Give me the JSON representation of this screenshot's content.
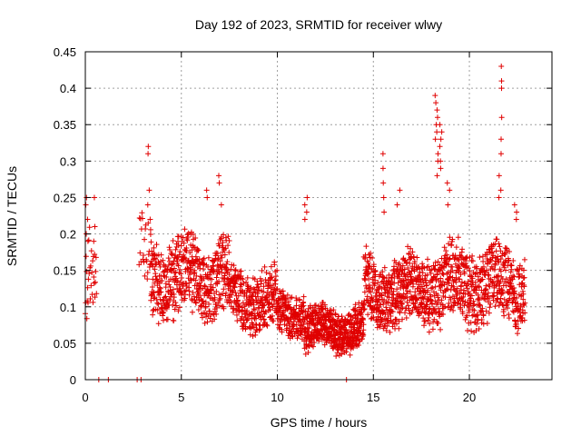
{
  "chart_data": {
    "type": "scatter",
    "title": "Day 192 of 2023, SRMTID for receiver wlwy",
    "xlabel": "GPS time / hours",
    "ylabel": "SRMTID / TECUs",
    "xlim": [
      0,
      24.3
    ],
    "ylim": [
      0,
      0.45
    ],
    "xticks": [
      0,
      5,
      10,
      15,
      20
    ],
    "xtick_labels": [
      "0",
      "5",
      "10",
      "15",
      "20"
    ],
    "yticks": [
      0,
      0.05,
      0.1,
      0.15,
      0.2,
      0.25,
      0.3,
      0.35,
      0.4,
      0.45
    ],
    "ytick_labels": [
      "0",
      "0.05",
      "0.1",
      "0.15",
      "0.2",
      "0.25",
      "0.3",
      "0.35",
      "0.4",
      "0.45"
    ],
    "grid": true,
    "marker": "+",
    "marker_color": "#e00000",
    "series": [
      {
        "name": "SRMTID",
        "segments": [
          {
            "x": [
              0.0,
              0.6
            ],
            "level": 0.14,
            "spread": 0.05,
            "step": 0.02
          },
          {
            "x": [
              2.8,
              3.4
            ],
            "level": 0.17,
            "spread": 0.04,
            "step": 0.025
          },
          {
            "x": [
              3.4,
              7.5
            ],
            "level": 0.14,
            "spread": 0.045,
            "step": 0.008
          },
          {
            "x": [
              7.5,
              10.0
            ],
            "level": 0.11,
            "spread": 0.035,
            "step": 0.008
          },
          {
            "x": [
              10.0,
              11.4
            ],
            "level": 0.09,
            "spread": 0.025,
            "step": 0.008
          },
          {
            "x": [
              11.4,
              14.5
            ],
            "level": 0.07,
            "spread": 0.025,
            "step": 0.006
          },
          {
            "x": [
              14.5,
              17.8
            ],
            "level": 0.12,
            "spread": 0.04,
            "step": 0.007
          },
          {
            "x": [
              17.8,
              22.9
            ],
            "level": 0.13,
            "spread": 0.045,
            "step": 0.008
          }
        ],
        "spikes": [
          {
            "x": 0.1,
            "values": [
              0.25,
              0.24,
              0.22,
              0.2,
              0.19
            ]
          },
          {
            "x": 0.5,
            "values": [
              0.25,
              0.21,
              0.19
            ]
          },
          {
            "x": 3.3,
            "values": [
              0.32,
              0.31,
              0.26,
              0.24,
              0.22
            ]
          },
          {
            "x": 6.3,
            "values": [
              0.26,
              0.25
            ]
          },
          {
            "x": 7.0,
            "values": [
              0.28,
              0.27,
              0.24
            ]
          },
          {
            "x": 11.5,
            "values": [
              0.25,
              0.24,
              0.23,
              0.22
            ]
          },
          {
            "x": 15.5,
            "values": [
              0.31,
              0.29,
              0.27,
              0.25,
              0.23
            ]
          },
          {
            "x": 16.3,
            "values": [
              0.26,
              0.24
            ]
          },
          {
            "x": 18.3,
            "values": [
              0.39,
              0.38,
              0.37,
              0.36,
              0.35,
              0.34,
              0.33,
              0.31,
              0.3,
              0.28
            ]
          },
          {
            "x": 18.5,
            "values": [
              0.35,
              0.34,
              0.33,
              0.32,
              0.3,
              0.29
            ]
          },
          {
            "x": 18.9,
            "values": [
              0.27,
              0.26,
              0.24
            ]
          },
          {
            "x": 21.6,
            "values": [
              0.43,
              0.41,
              0.4,
              0.36,
              0.33,
              0.31,
              0.28,
              0.26,
              0.25
            ]
          },
          {
            "x": 22.4,
            "values": [
              0.24,
              0.23,
              0.22
            ]
          }
        ],
        "zeros": [
          0.7,
          1.2,
          2.7,
          2.9,
          13.6
        ]
      }
    ]
  }
}
